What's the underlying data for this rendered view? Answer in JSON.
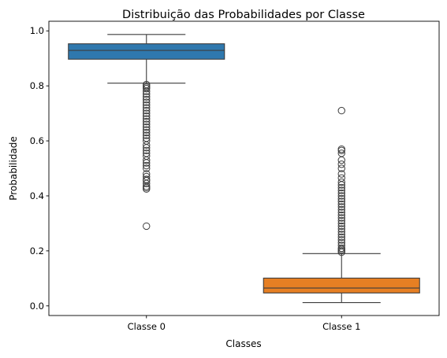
{
  "chart_data": {
    "type": "boxplot",
    "title": "Distribuição das Probabilidades por Classe",
    "xlabel": "Classes",
    "ylabel": "Probabilidade",
    "ylim": [
      -0.035,
      1.035
    ],
    "yticks": [
      0.0,
      0.2,
      0.4,
      0.6,
      0.8,
      1.0
    ],
    "ytick_labels": [
      "0.0",
      "0.2",
      "0.4",
      "0.6",
      "0.8",
      "1.0"
    ],
    "grid": false,
    "categories": [
      "Classe 0",
      "Classe 1"
    ],
    "boxes": [
      {
        "category": "Classe 0",
        "color": "#2f78ae",
        "whisker_low": 0.81,
        "q1": 0.897,
        "median": 0.929,
        "q3": 0.953,
        "whisker_high": 0.987,
        "outliers": [
          0.29,
          0.425,
          0.43,
          0.435,
          0.445,
          0.455,
          0.46,
          0.47,
          0.48,
          0.5,
          0.51,
          0.52,
          0.53,
          0.545,
          0.555,
          0.565,
          0.575,
          0.585,
          0.6,
          0.61,
          0.62,
          0.63,
          0.64,
          0.65,
          0.66,
          0.67,
          0.68,
          0.69,
          0.7,
          0.71,
          0.72,
          0.73,
          0.74,
          0.75,
          0.76,
          0.77,
          0.78,
          0.79,
          0.795,
          0.8,
          0.805
        ]
      },
      {
        "category": "Classe 1",
        "color": "#e67f23",
        "whisker_low": 0.012,
        "q1": 0.047,
        "median": 0.065,
        "q3": 0.101,
        "whisker_high": 0.19,
        "outliers": [
          0.195,
          0.2,
          0.205,
          0.21,
          0.22,
          0.23,
          0.24,
          0.25,
          0.26,
          0.27,
          0.28,
          0.29,
          0.3,
          0.31,
          0.32,
          0.33,
          0.34,
          0.35,
          0.36,
          0.37,
          0.38,
          0.39,
          0.4,
          0.41,
          0.42,
          0.43,
          0.44,
          0.45,
          0.465,
          0.48,
          0.5,
          0.515,
          0.53,
          0.555,
          0.565,
          0.57,
          0.71
        ]
      }
    ]
  }
}
